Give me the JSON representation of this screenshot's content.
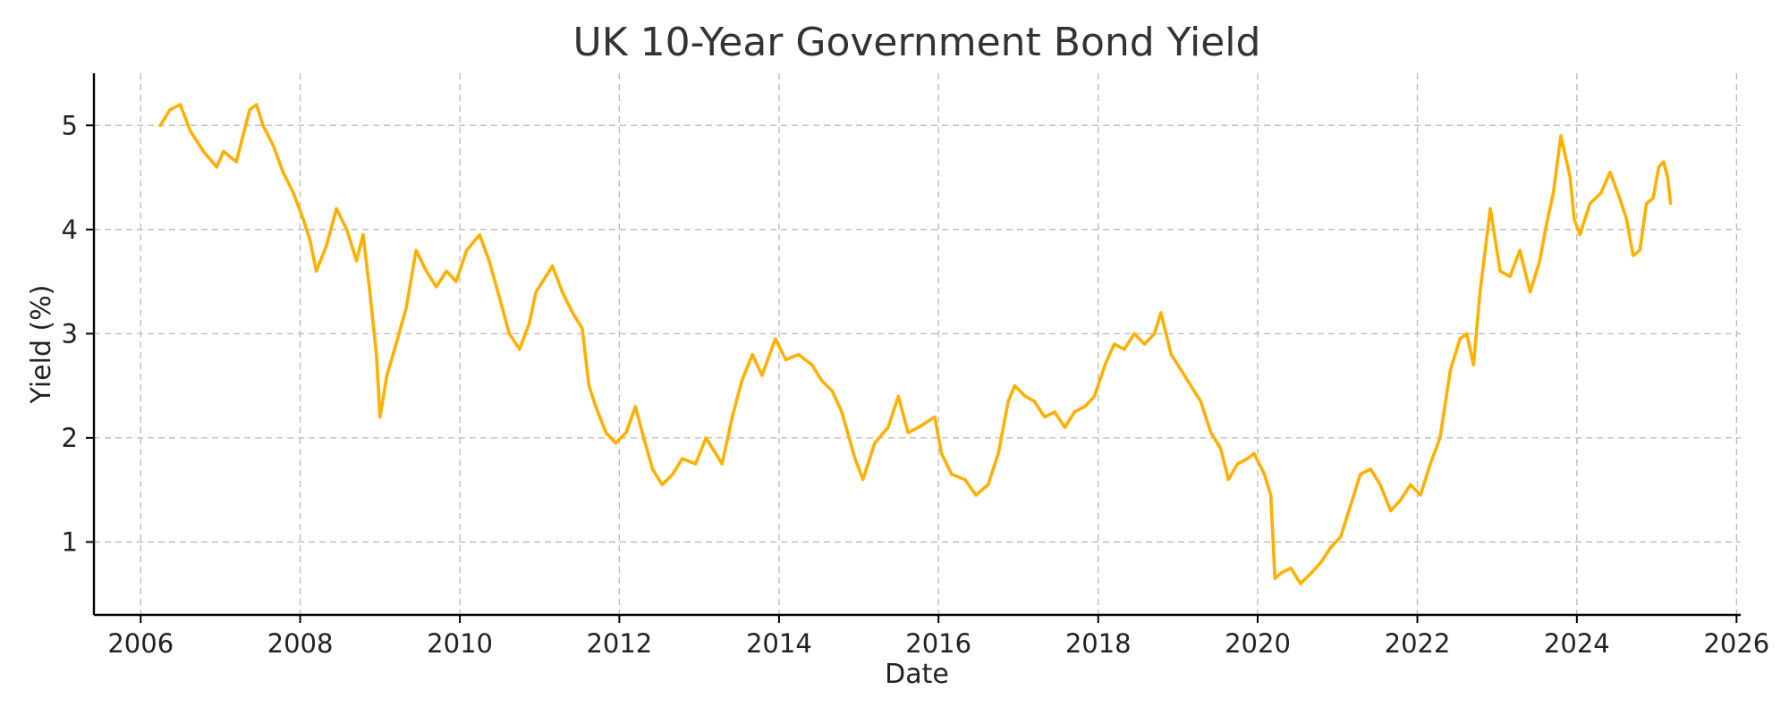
{
  "chart_data": {
    "type": "line",
    "title": "UK 10-Year Government Bond Yield",
    "xlabel": "Date",
    "ylabel": "Yield (%)",
    "xlim": [
      "2005-06-01",
      "2026-01-20"
    ],
    "ylim": [
      0.3,
      5.5
    ],
    "xticks": [
      "2006",
      "2008",
      "2010",
      "2012",
      "2014",
      "2016",
      "2018",
      "2020",
      "2022",
      "2024",
      "2026"
    ],
    "yticks": [
      1,
      2,
      3,
      4,
      5
    ],
    "grid": true,
    "legend": "none",
    "color": "#FFB000",
    "series": [
      {
        "x": [
          "2006-04-01",
          "2006-05-15",
          "2006-07-01",
          "2006-08-15",
          "2006-10-15",
          "2006-12-15",
          "2007-01-15",
          "2007-03-15",
          "2007-05-15",
          "2007-06-15",
          "2007-07-15",
          "2007-09-01",
          "2007-10-15",
          "2007-12-01",
          "2008-01-15",
          "2008-02-15",
          "2008-03-15",
          "2008-05-01",
          "2008-06-15",
          "2008-08-01",
          "2008-09-15",
          "2008-10-15",
          "2008-11-15",
          "2008-12-15",
          "2009-01-01",
          "2009-02-01",
          "2009-03-15",
          "2009-05-01",
          "2009-06-15",
          "2009-08-01",
          "2009-09-15",
          "2009-11-01",
          "2009-12-15",
          "2010-02-01",
          "2010-04-01",
          "2010-05-15",
          "2010-07-01",
          "2010-08-15",
          "2010-10-01",
          "2010-11-15",
          "2010-12-15",
          "2011-01-15",
          "2011-03-01",
          "2011-04-15",
          "2011-06-01",
          "2011-07-15",
          "2011-08-15",
          "2011-09-15",
          "2011-11-01",
          "2011-12-15",
          "2012-02-01",
          "2012-03-15",
          "2012-04-15",
          "2012-06-01",
          "2012-07-15",
          "2012-09-01",
          "2012-10-15",
          "2012-12-15",
          "2013-02-01",
          "2013-04-15",
          "2013-06-01",
          "2013-07-15",
          "2013-09-01",
          "2013-10-15",
          "2013-12-15",
          "2014-02-01",
          "2014-04-01",
          "2014-06-01",
          "2014-07-15",
          "2014-09-01",
          "2014-10-15",
          "2014-12-15",
          "2015-01-20",
          "2015-03-15",
          "2015-05-15",
          "2015-07-01",
          "2015-08-15",
          "2015-10-01",
          "2015-12-15",
          "2016-01-15",
          "2016-03-01",
          "2016-05-01",
          "2016-06-20",
          "2016-08-15",
          "2016-10-01",
          "2016-11-15",
          "2016-12-15",
          "2017-02-01",
          "2017-03-15",
          "2017-05-01",
          "2017-06-15",
          "2017-08-01",
          "2017-09-15",
          "2017-11-01",
          "2017-12-15",
          "2018-02-01",
          "2018-03-15",
          "2018-05-01",
          "2018-06-15",
          "2018-08-01",
          "2018-09-15",
          "2018-10-15",
          "2018-12-01",
          "2019-01-15",
          "2019-03-01",
          "2019-04-15",
          "2019-06-01",
          "2019-07-15",
          "2019-08-20",
          "2019-10-01",
          "2019-11-15",
          "2019-12-15",
          "2020-02-01",
          "2020-03-01",
          "2020-03-20",
          "2020-04-15",
          "2020-06-01",
          "2020-07-15",
          "2020-09-01",
          "2020-10-15",
          "2020-12-01",
          "2021-01-15",
          "2021-03-01",
          "2021-04-15",
          "2021-06-01",
          "2021-07-15",
          "2021-09-01",
          "2021-10-15",
          "2021-12-01",
          "2022-01-15",
          "2022-03-01",
          "2022-04-15",
          "2022-06-01",
          "2022-07-15",
          "2022-08-15",
          "2022-09-15",
          "2022-10-15",
          "2022-12-01",
          "2023-01-15",
          "2023-03-01",
          "2023-04-15",
          "2023-06-01",
          "2023-07-15",
          "2023-08-15",
          "2023-09-15",
          "2023-10-20",
          "2023-12-01",
          "2023-12-20",
          "2024-01-15",
          "2024-03-01",
          "2024-04-20",
          "2024-06-01",
          "2024-07-15",
          "2024-08-15",
          "2024-09-15",
          "2024-10-15",
          "2024-11-15",
          "2024-12-15",
          "2025-01-10",
          "2025-02-01",
          "2025-02-20",
          "2025-03-05"
        ],
        "y": [
          5.0,
          5.15,
          5.2,
          4.95,
          4.75,
          4.6,
          4.75,
          4.65,
          5.15,
          5.2,
          5.0,
          4.8,
          4.55,
          4.35,
          4.1,
          3.9,
          3.6,
          3.85,
          4.2,
          4.0,
          3.7,
          3.95,
          3.4,
          2.8,
          2.2,
          2.6,
          2.9,
          3.25,
          3.8,
          3.6,
          3.45,
          3.6,
          3.5,
          3.8,
          3.95,
          3.7,
          3.35,
          3.0,
          2.85,
          3.1,
          3.4,
          3.5,
          3.65,
          3.4,
          3.2,
          3.05,
          2.5,
          2.3,
          2.05,
          1.95,
          2.05,
          2.3,
          2.05,
          1.7,
          1.55,
          1.65,
          1.8,
          1.75,
          2.0,
          1.75,
          2.2,
          2.55,
          2.8,
          2.6,
          2.95,
          2.75,
          2.8,
          2.7,
          2.55,
          2.45,
          2.25,
          1.8,
          1.6,
          1.95,
          2.1,
          2.4,
          2.05,
          2.1,
          2.2,
          1.85,
          1.65,
          1.6,
          1.45,
          1.55,
          1.85,
          2.35,
          2.5,
          2.4,
          2.35,
          2.2,
          2.25,
          2.1,
          2.25,
          2.3,
          2.4,
          2.7,
          2.9,
          2.85,
          3.0,
          2.9,
          3.0,
          3.2,
          2.8,
          2.65,
          2.5,
          2.35,
          2.05,
          1.9,
          1.6,
          1.75,
          1.8,
          1.85,
          1.65,
          1.45,
          0.65,
          0.7,
          0.75,
          0.6,
          0.7,
          0.8,
          0.95,
          1.05,
          1.35,
          1.65,
          1.7,
          1.55,
          1.3,
          1.4,
          1.55,
          1.45,
          1.75,
          2.0,
          2.65,
          2.95,
          3.0,
          2.7,
          3.4,
          4.2,
          3.6,
          3.55,
          3.8,
          3.4,
          3.7,
          4.05,
          4.35,
          4.9,
          4.5,
          4.1,
          3.95,
          4.25,
          4.35,
          4.55,
          4.3,
          4.1,
          3.75,
          3.8,
          4.25,
          4.3,
          4.6,
          4.65,
          4.5,
          4.25
        ]
      }
    ]
  }
}
